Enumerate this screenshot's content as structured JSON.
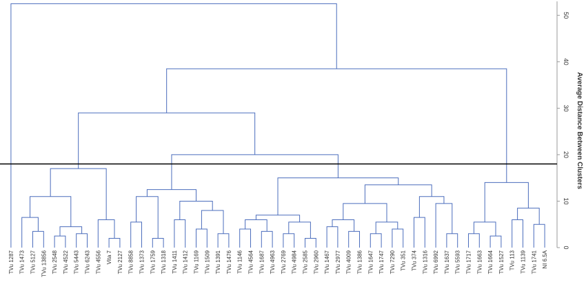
{
  "chart_data": {
    "type": "dendrogram",
    "y_label": "Average Distance Between Clusters",
    "ylim": [
      0,
      53
    ],
    "yticks": [
      0,
      10,
      20,
      30,
      40,
      50
    ],
    "cut_height": 18,
    "color": "#4a6cbc",
    "cut_color": "#000000",
    "tree": {
      "height": 52.5,
      "children": [
        {
          "label": "TVu 1287"
        },
        {
          "height": 38.5,
          "children": [
            {
              "height": 29,
              "children": [
                {
                  "height": 17,
                  "children": [
                    {
                      "height": 11,
                      "children": [
                        {
                          "height": 6.5,
                          "children": [
                            {
                              "label": "TVu 1473"
                            },
                            {
                              "height": 3.5,
                              "children": [
                                {
                                  "label": "TVu 5127"
                                },
                                {
                                  "label": "TVu 13856"
                                }
                              ]
                            }
                          ]
                        },
                        {
                          "height": 4.5,
                          "children": [
                            {
                              "height": 2.5,
                              "children": [
                                {
                                  "label": "TVu 2548"
                                },
                                {
                                  "label": "TVu 4522"
                                }
                              ]
                            },
                            {
                              "height": 3,
                              "children": [
                                {
                                  "label": "TVu 5443"
                                },
                                {
                                  "label": "TVu 6243"
                                }
                              ]
                            }
                          ]
                        }
                      ]
                    },
                    {
                      "height": 6,
                      "children": [
                        {
                          "label": "TVu 4556"
                        },
                        {
                          "height": 2,
                          "children": [
                            {
                              "label": "Vita 7"
                            },
                            {
                              "label": "TVu 2127"
                            }
                          ]
                        }
                      ]
                    }
                  ]
                },
                {
                  "height": 20,
                  "children": [
                    {
                      "height": 12.5,
                      "children": [
                        {
                          "height": 11,
                          "children": [
                            {
                              "height": 5.5,
                              "children": [
                                {
                                  "label": "TVu 8858"
                                },
                                {
                                  "label": "TVu 1373"
                                }
                              ]
                            },
                            {
                              "height": 2,
                              "children": [
                                {
                                  "label": "TVu 1759"
                                },
                                {
                                  "label": "TVu 1318"
                                }
                              ]
                            }
                          ]
                        },
                        {
                          "height": 10,
                          "children": [
                            {
                              "height": 6,
                              "children": [
                                {
                                  "label": "TVu 1411"
                                },
                                {
                                  "label": "TVu 1412"
                                }
                              ]
                            },
                            {
                              "height": 8,
                              "children": [
                                {
                                  "height": 4,
                                  "children": [
                                    {
                                      "label": "TVu 1169"
                                    },
                                    {
                                      "label": "TVu 1509"
                                    }
                                  ]
                                },
                                {
                                  "height": 3,
                                  "children": [
                                    {
                                      "label": "TVu 1391"
                                    },
                                    {
                                      "label": "TVu 1476"
                                    }
                                  ]
                                }
                              ]
                            }
                          ]
                        }
                      ]
                    },
                    {
                      "height": 15,
                      "children": [
                        {
                          "height": 7,
                          "children": [
                            {
                              "height": 6,
                              "children": [
                                {
                                  "height": 4,
                                  "children": [
                                    {
                                      "label": "TVu 1146"
                                    },
                                    {
                                      "label": "TVu 4564"
                                    }
                                  ]
                                },
                                {
                                  "height": 3.5,
                                  "children": [
                                    {
                                      "label": "TVu 1687"
                                    },
                                    {
                                      "label": "TVu 4963"
                                    }
                                  ]
                                }
                              ]
                            },
                            {
                              "height": 5.5,
                              "children": [
                                {
                                  "height": 3,
                                  "children": [
                                    {
                                      "label": "TVu 2769"
                                    },
                                    {
                                      "label": "TVu 4984"
                                    }
                                  ]
                                },
                                {
                                  "height": 2,
                                  "children": [
                                    {
                                      "label": "TVu 2585"
                                    },
                                    {
                                      "label": "TVu 2960"
                                    }
                                  ]
                                }
                              ]
                            }
                          ]
                        },
                        {
                          "height": 13.5,
                          "children": [
                            {
                              "height": 9.5,
                              "children": [
                                {
                                  "height": 6,
                                  "children": [
                                    {
                                      "height": 4.5,
                                      "children": [
                                        {
                                          "label": "TVu 1467"
                                        },
                                        {
                                          "label": "TVu 2977"
                                        }
                                      ]
                                    },
                                    {
                                      "height": 3.5,
                                      "children": [
                                        {
                                          "label": "TVu 4009"
                                        },
                                        {
                                          "label": "TVu 1386"
                                        }
                                      ]
                                    }
                                  ]
                                },
                                {
                                  "height": 5.5,
                                  "children": [
                                    {
                                      "height": 3,
                                      "children": [
                                        {
                                          "label": "TVu 1647"
                                        },
                                        {
                                          "label": "TVu 1747"
                                        }
                                      ]
                                    },
                                    {
                                      "height": 4,
                                      "children": [
                                        {
                                          "label": "TVu 7290"
                                        },
                                        {
                                          "label": "TVu 351"
                                        }
                                      ]
                                    }
                                  ]
                                }
                              ]
                            },
                            {
                              "height": 11,
                              "children": [
                                {
                                  "height": 6.5,
                                  "children": [
                                    {
                                      "label": "TVu 374"
                                    },
                                    {
                                      "label": "TVu 1316"
                                    }
                                  ]
                                },
                                {
                                  "height": 9.5,
                                  "children": [
                                    {
                                      "label": "TVu 6992"
                                    },
                                    {
                                      "height": 3,
                                      "children": [
                                        {
                                          "label": "TVu 1637"
                                        },
                                        {
                                          "label": "TVu 5593"
                                        }
                                      ]
                                    }
                                  ]
                                }
                              ]
                            }
                          ]
                        }
                      ]
                    }
                  ]
                }
              ]
            },
            {
              "height": 14,
              "children": [
                {
                  "height": 5.5,
                  "children": [
                    {
                      "height": 3,
                      "children": [
                        {
                          "label": "TVu 1717"
                        },
                        {
                          "label": "TVu 1663"
                        }
                      ]
                    },
                    {
                      "height": 2.5,
                      "children": [
                        {
                          "label": "TVu 1664"
                        },
                        {
                          "label": "TVu 1527"
                        }
                      ]
                    }
                  ]
                },
                {
                  "height": 8.5,
                  "children": [
                    {
                      "height": 6,
                      "children": [
                        {
                          "label": "TVu 113"
                        },
                        {
                          "label": "TVu 1139"
                        }
                      ]
                    },
                    {
                      "height": 5,
                      "children": [
                        {
                          "label": "TVu 1741"
                        },
                        {
                          "label": "NI 6.5A"
                        }
                      ]
                    }
                  ]
                }
              ]
            }
          ]
        }
      ]
    }
  }
}
